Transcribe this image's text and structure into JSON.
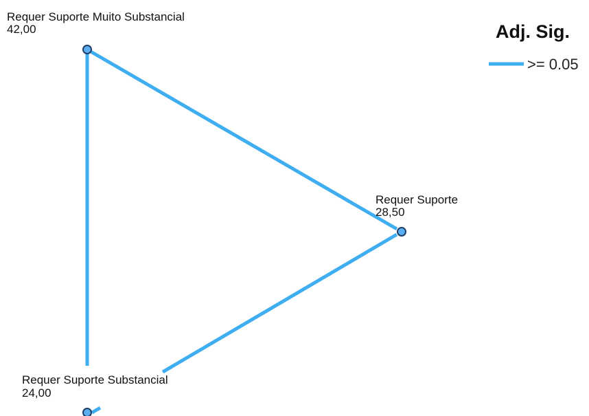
{
  "colors": {
    "edge": "#3FAEF0",
    "node_fill": "#5BAEF0",
    "node_stroke": "#1F3F66",
    "text": "#111111"
  },
  "nodes": [
    {
      "id": "muito-substancial",
      "name": "Requer Suporte Muito Substancial",
      "value": "42,00"
    },
    {
      "id": "suporte",
      "name": "Requer Suporte",
      "value": "28,50"
    },
    {
      "id": "substancial",
      "name": "Requer Suporte Substancial",
      "value": "24,00"
    }
  ],
  "edges": [
    {
      "from": "muito-substancial",
      "to": "suporte",
      "significance": ">= 0.05"
    },
    {
      "from": "muito-substancial",
      "to": "substancial",
      "significance": ">= 0.05"
    },
    {
      "from": "suporte",
      "to": "substancial",
      "significance": ">= 0.05"
    }
  ],
  "legend": {
    "title": "Adj. Sig.",
    "items": [
      {
        "label": ">= 0.05",
        "color": "#3FAEF0"
      }
    ]
  }
}
